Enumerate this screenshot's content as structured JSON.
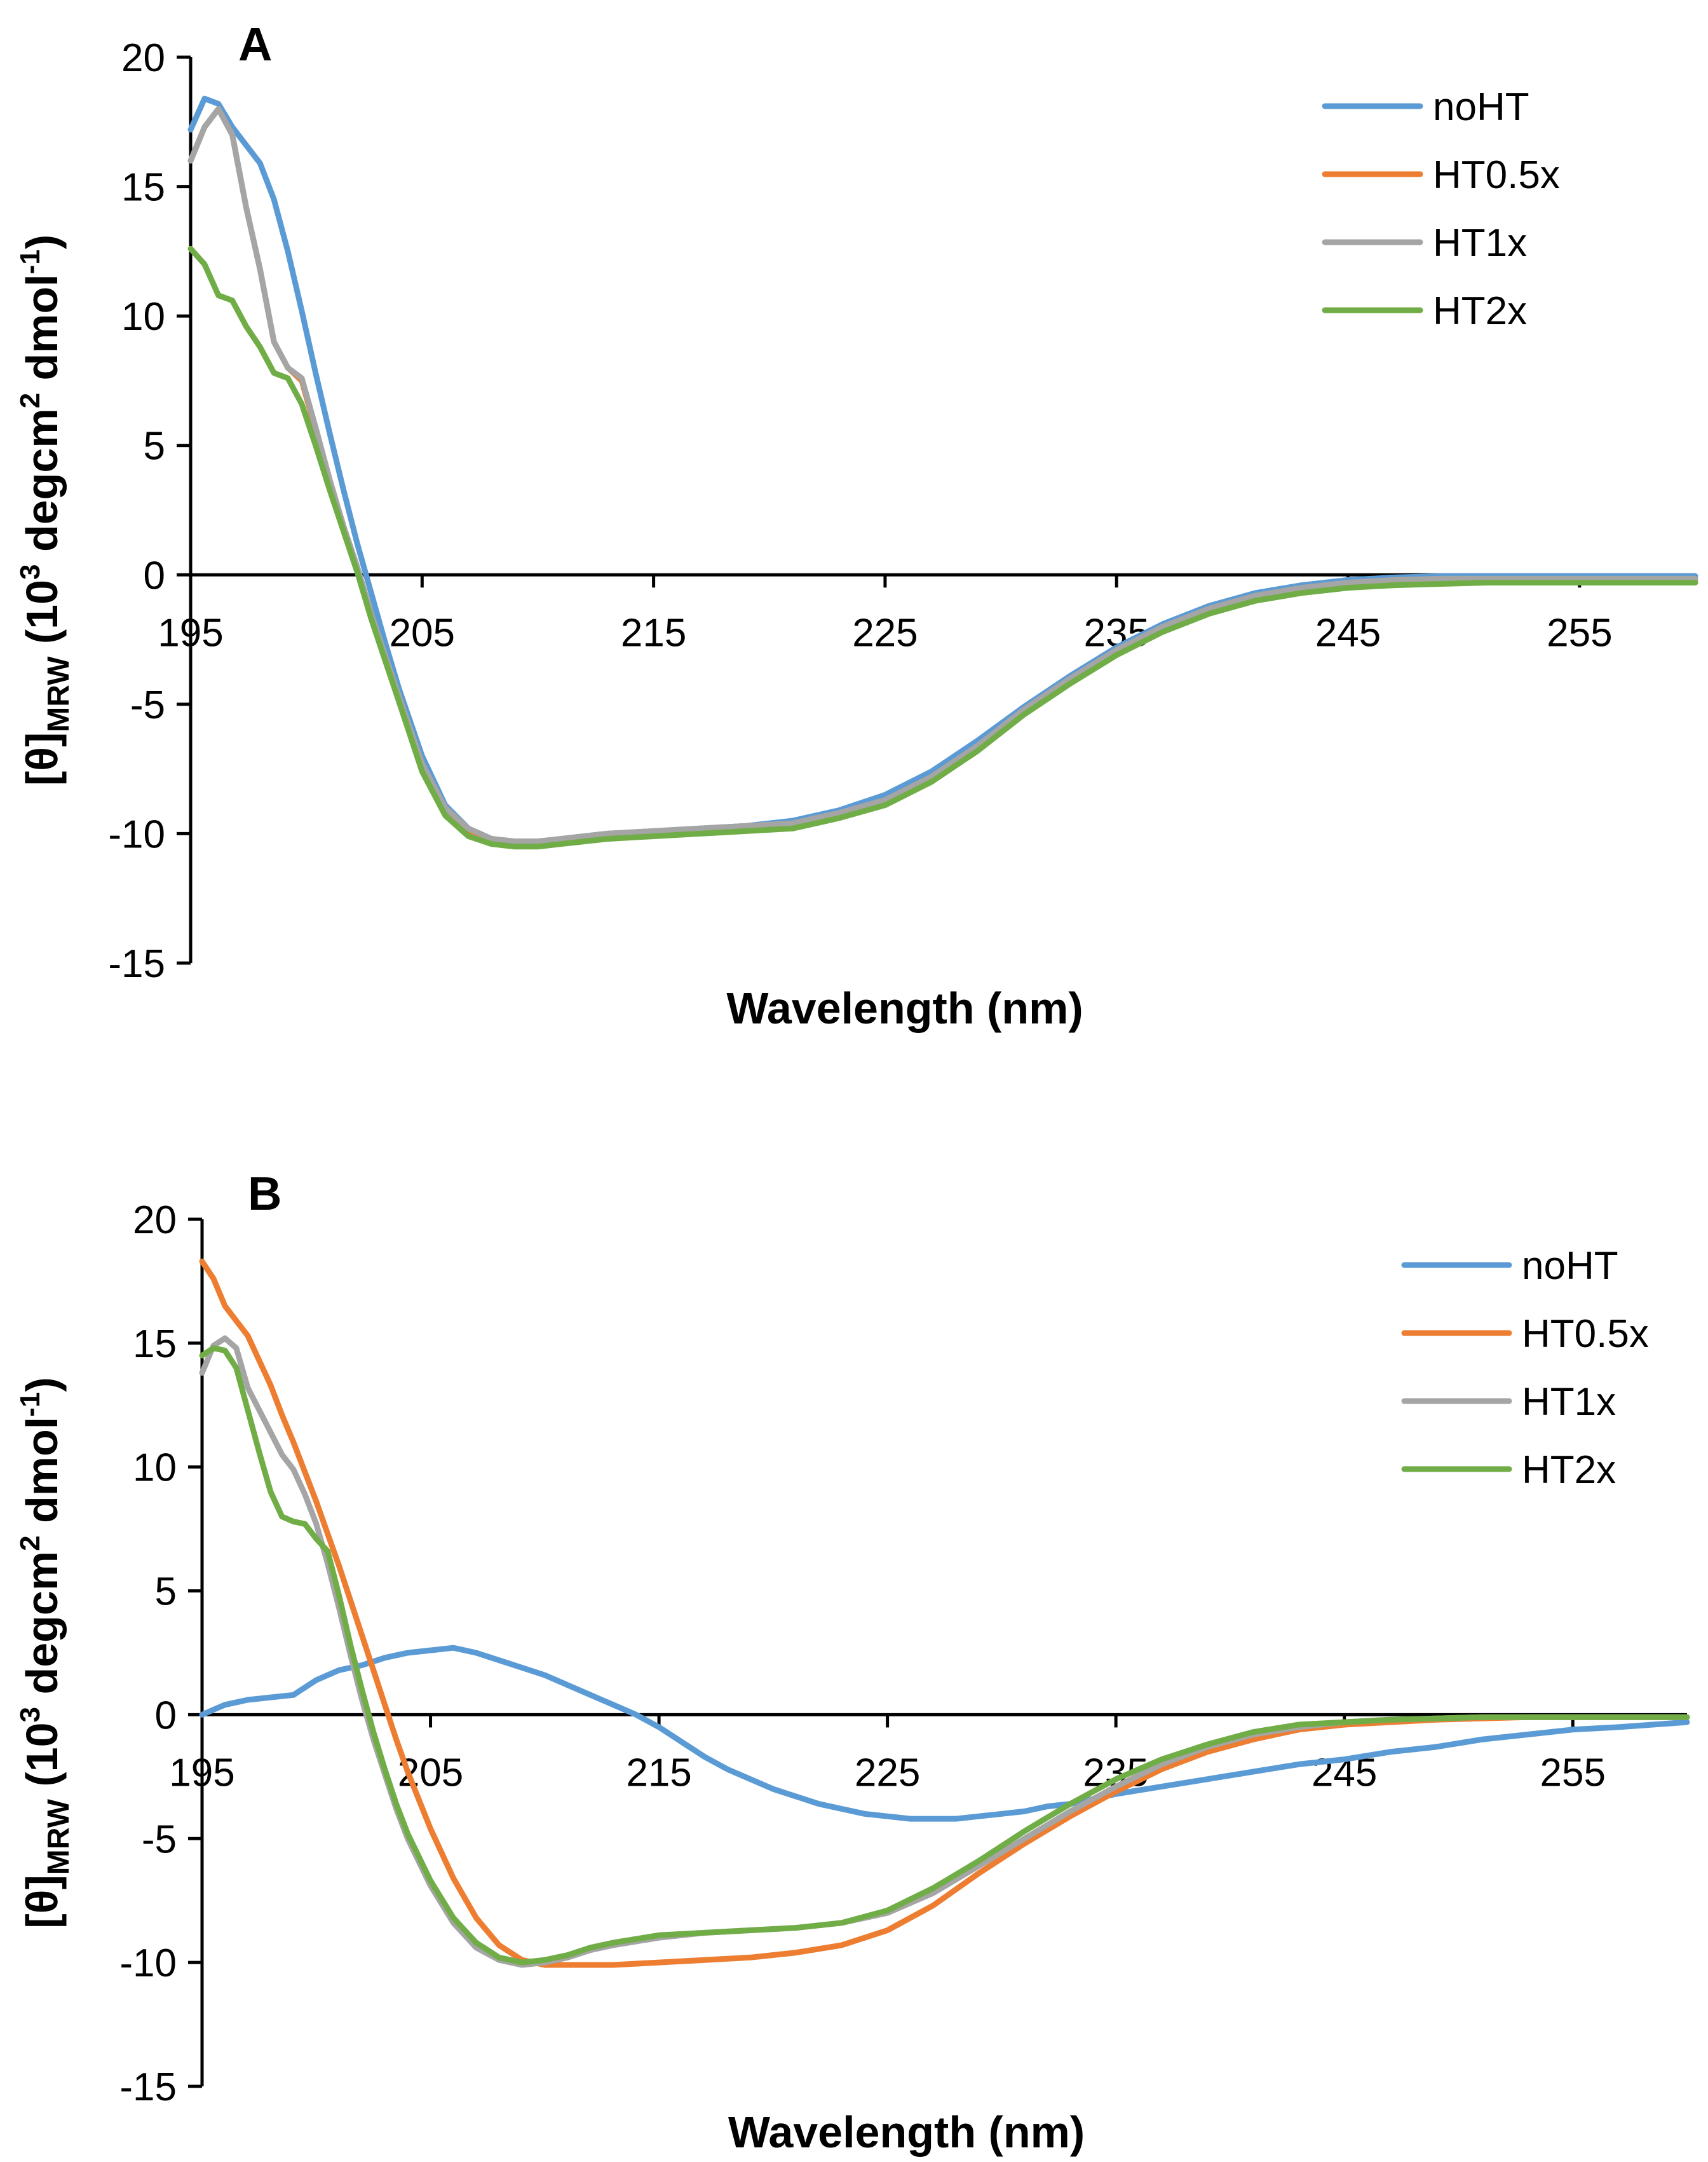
{
  "chart_data": [
    {
      "type": "line",
      "panel_label": "A",
      "xlabel": "Wavelength (nm)",
      "ylabel": "[θ]MRW (10³ degcm² dmol⁻¹)",
      "ylabel_parts": {
        "main": "[θ]",
        "sub": "MRW",
        "rest": " (10",
        "sup1": "3",
        "mid": " degcm",
        "sup2": "2",
        "mid2": " dmol",
        "sup3": "-1",
        "end": ")"
      },
      "xlim": [
        195,
        260
      ],
      "ylim": [
        -15,
        20
      ],
      "x_ticks": [
        195,
        205,
        215,
        225,
        235,
        245,
        255
      ],
      "y_ticks": [
        20,
        15,
        10,
        5,
        0,
        -5,
        -10,
        -15
      ],
      "grid": false,
      "legend_position": "top-right",
      "series": [
        {
          "name": "noHT",
          "color": "#5b9bd5",
          "x": [
            195,
            195.6,
            196.2,
            196.8,
            197.4,
            198,
            198.6,
            199.2,
            199.8,
            200.4,
            201,
            201.6,
            202.2,
            202.8,
            203.4,
            204,
            205,
            206,
            207,
            208,
            209,
            210,
            211,
            212,
            213,
            215,
            217,
            219,
            221,
            223,
            225,
            227,
            229,
            231,
            233,
            235,
            237,
            239,
            241,
            243,
            245,
            247,
            249,
            251,
            253,
            255,
            257,
            260
          ],
          "y": [
            17.2,
            18.4,
            18.2,
            17.3,
            16.6,
            15.9,
            14.5,
            12.5,
            10.2,
            7.8,
            5.5,
            3.3,
            1.2,
            -0.7,
            -2.6,
            -4.4,
            -7.0,
            -8.9,
            -9.8,
            -10.2,
            -10.3,
            -10.3,
            -10.2,
            -10.1,
            -10.0,
            -9.9,
            -9.8,
            -9.7,
            -9.5,
            -9.1,
            -8.5,
            -7.6,
            -6.4,
            -5.1,
            -3.9,
            -2.8,
            -1.9,
            -1.2,
            -0.7,
            -0.4,
            -0.2,
            -0.1,
            -0.05,
            -0.05,
            -0.05,
            -0.05,
            -0.05,
            -0.05
          ]
        },
        {
          "name": "HT0.5x",
          "color": "#ed7d31",
          "x": [
            195,
            195.6,
            196.2,
            196.8,
            197.4,
            198,
            198.6,
            199.2,
            199.8,
            200.4,
            201,
            201.6,
            202.2,
            202.8,
            203.4,
            204,
            205,
            206,
            207,
            208,
            209,
            210,
            211,
            212,
            213,
            215,
            217,
            219,
            221,
            223,
            225,
            227,
            229,
            231,
            233,
            235,
            237,
            239,
            241,
            243,
            245,
            247,
            249,
            251,
            253,
            255,
            257,
            260
          ],
          "y": [
            16.0,
            17.3,
            18.0,
            17.0,
            14.2,
            11.8,
            9.0,
            8.0,
            7.5,
            5.6,
            3.6,
            1.8,
            0.2,
            -1.6,
            -3.2,
            -4.8,
            -7.4,
            -9.1,
            -9.9,
            -10.3,
            -10.4,
            -10.4,
            -10.3,
            -10.2,
            -10.1,
            -10.0,
            -9.9,
            -9.8,
            -9.7,
            -9.3,
            -8.8,
            -7.9,
            -6.7,
            -5.3,
            -4.1,
            -3.0,
            -2.1,
            -1.4,
            -0.9,
            -0.6,
            -0.4,
            -0.3,
            -0.25,
            -0.2,
            -0.2,
            -0.2,
            -0.2,
            -0.2
          ]
        },
        {
          "name": "HT1x",
          "color": "#a5a5a5",
          "x": [
            195,
            195.6,
            196.2,
            196.8,
            197.4,
            198,
            198.6,
            199.2,
            199.8,
            200.4,
            201,
            201.6,
            202.2,
            202.8,
            203.4,
            204,
            205,
            206,
            207,
            208,
            209,
            210,
            211,
            212,
            213,
            215,
            217,
            219,
            221,
            223,
            225,
            227,
            229,
            231,
            233,
            235,
            237,
            239,
            241,
            243,
            245,
            247,
            249,
            251,
            253,
            255,
            257,
            260
          ],
          "y": [
            16.0,
            17.3,
            18.0,
            17.0,
            14.2,
            11.8,
            9.0,
            8.0,
            7.6,
            5.7,
            3.7,
            1.9,
            0.3,
            -1.5,
            -3.1,
            -4.7,
            -7.3,
            -9.0,
            -9.8,
            -10.2,
            -10.3,
            -10.3,
            -10.2,
            -10.1,
            -10.0,
            -9.9,
            -9.8,
            -9.7,
            -9.6,
            -9.2,
            -8.7,
            -7.8,
            -6.6,
            -5.2,
            -4.0,
            -2.9,
            -2.0,
            -1.3,
            -0.8,
            -0.5,
            -0.3,
            -0.2,
            -0.15,
            -0.15,
            -0.15,
            -0.15,
            -0.15,
            -0.15
          ]
        },
        {
          "name": "HT2x",
          "color": "#70ad47",
          "x": [
            195,
            195.6,
            196.2,
            196.8,
            197.4,
            198,
            198.6,
            199.2,
            199.8,
            200.4,
            201,
            201.6,
            202.2,
            202.8,
            203.4,
            204,
            205,
            206,
            207,
            208,
            209,
            210,
            211,
            212,
            213,
            215,
            217,
            219,
            221,
            223,
            225,
            227,
            229,
            231,
            233,
            235,
            237,
            239,
            241,
            243,
            245,
            247,
            249,
            251,
            253,
            255,
            257,
            260
          ],
          "y": [
            12.6,
            12.0,
            10.8,
            10.6,
            9.6,
            8.8,
            7.8,
            7.6,
            6.6,
            5.0,
            3.3,
            1.7,
            0.1,
            -1.7,
            -3.3,
            -4.9,
            -7.6,
            -9.3,
            -10.1,
            -10.4,
            -10.5,
            -10.5,
            -10.4,
            -10.3,
            -10.2,
            -10.1,
            -10.0,
            -9.9,
            -9.8,
            -9.4,
            -8.9,
            -8.0,
            -6.8,
            -5.4,
            -4.2,
            -3.1,
            -2.2,
            -1.5,
            -1.0,
            -0.7,
            -0.5,
            -0.4,
            -0.35,
            -0.3,
            -0.3,
            -0.3,
            -0.3,
            -0.3
          ]
        }
      ]
    },
    {
      "type": "line",
      "panel_label": "B",
      "xlabel": "Wavelength (nm)",
      "ylabel": "[θ]MRW (10³ degcm² dmol⁻¹)",
      "ylabel_parts": {
        "main": "[θ]",
        "sub": "MRW",
        "rest": " (10",
        "sup1": "3",
        "mid": " degcm",
        "sup2": "2",
        "mid2": " dmol",
        "sup3": "-1",
        "end": ")"
      },
      "xlim": [
        195,
        260
      ],
      "ylim": [
        -15,
        20
      ],
      "x_ticks": [
        195,
        205,
        215,
        225,
        235,
        245,
        255
      ],
      "y_ticks": [
        20,
        15,
        10,
        5,
        0,
        -5,
        -10,
        -15
      ],
      "grid": false,
      "legend_position": "top-right",
      "series": [
        {
          "name": "noHT",
          "color": "#5b9bd5",
          "x": [
            195,
            196,
            197,
            198,
            199,
            200,
            201,
            202,
            203,
            204,
            205,
            206,
            207,
            208,
            209,
            210,
            211,
            212,
            213,
            214,
            215,
            216,
            217,
            218,
            219,
            220,
            221,
            222,
            223,
            224,
            225,
            226,
            227,
            228,
            229,
            230,
            231,
            232,
            233,
            234,
            235,
            237,
            239,
            241,
            243,
            245,
            247,
            249,
            251,
            253,
            255,
            257,
            260
          ],
          "y": [
            0.0,
            0.4,
            0.6,
            0.7,
            0.8,
            1.4,
            1.8,
            2.0,
            2.3,
            2.5,
            2.6,
            2.7,
            2.5,
            2.2,
            1.9,
            1.6,
            1.2,
            0.8,
            0.4,
            0.0,
            -0.5,
            -1.1,
            -1.7,
            -2.2,
            -2.6,
            -3.0,
            -3.3,
            -3.6,
            -3.8,
            -4.0,
            -4.1,
            -4.2,
            -4.2,
            -4.2,
            -4.1,
            -4.0,
            -3.9,
            -3.7,
            -3.6,
            -3.4,
            -3.2,
            -2.9,
            -2.6,
            -2.3,
            -2.0,
            -1.8,
            -1.5,
            -1.3,
            -1.0,
            -0.8,
            -0.6,
            -0.5,
            -0.3
          ]
        },
        {
          "name": "HT0.5x",
          "color": "#ed7d31",
          "x": [
            195,
            195.5,
            196,
            196.5,
            197,
            197.5,
            198,
            198.5,
            199,
            199.5,
            200,
            200.5,
            201,
            201.5,
            202,
            202.5,
            203,
            203.5,
            204,
            205,
            206,
            207,
            208,
            209,
            210,
            211,
            212,
            213,
            215,
            217,
            219,
            221,
            223,
            225,
            227,
            229,
            231,
            233,
            235,
            237,
            239,
            241,
            243,
            245,
            247,
            249,
            251,
            253,
            255,
            257,
            260
          ],
          "y": [
            18.3,
            17.6,
            16.5,
            15.9,
            15.3,
            14.3,
            13.3,
            12.1,
            11.0,
            9.8,
            8.6,
            7.3,
            6.0,
            4.6,
            3.2,
            1.8,
            0.4,
            -1.0,
            -2.3,
            -4.6,
            -6.6,
            -8.2,
            -9.3,
            -9.9,
            -10.1,
            -10.1,
            -10.1,
            -10.1,
            -10.0,
            -9.9,
            -9.8,
            -9.6,
            -9.3,
            -8.7,
            -7.7,
            -6.4,
            -5.2,
            -4.1,
            -3.1,
            -2.2,
            -1.5,
            -1.0,
            -0.6,
            -0.4,
            -0.3,
            -0.2,
            -0.15,
            -0.1,
            -0.1,
            -0.1,
            -0.1
          ]
        },
        {
          "name": "HT1x",
          "color": "#a5a5a5",
          "x": [
            195,
            195.5,
            196,
            196.5,
            197,
            197.5,
            198,
            198.5,
            199,
            199.5,
            200,
            200.5,
            201,
            201.5,
            202,
            202.5,
            203,
            203.5,
            204,
            205,
            206,
            207,
            208,
            209,
            210,
            211,
            212,
            213,
            215,
            217,
            219,
            221,
            223,
            225,
            227,
            229,
            231,
            233,
            235,
            237,
            239,
            241,
            243,
            245,
            247,
            249,
            251,
            253,
            255,
            257,
            260
          ],
          "y": [
            13.8,
            14.9,
            15.2,
            14.8,
            13.2,
            12.3,
            11.4,
            10.5,
            9.9,
            8.9,
            7.7,
            6.1,
            4.3,
            2.4,
            0.6,
            -1.0,
            -2.4,
            -3.8,
            -5.0,
            -6.9,
            -8.4,
            -9.4,
            -9.9,
            -10.1,
            -10.0,
            -9.8,
            -9.5,
            -9.3,
            -9.0,
            -8.8,
            -8.7,
            -8.6,
            -8.4,
            -8.0,
            -7.2,
            -6.1,
            -5.0,
            -3.9,
            -2.9,
            -2.0,
            -1.3,
            -0.8,
            -0.5,
            -0.3,
            -0.2,
            -0.15,
            -0.1,
            -0.1,
            -0.1,
            -0.1,
            -0.1
          ]
        },
        {
          "name": "HT2x",
          "color": "#70ad47",
          "x": [
            195,
            195.5,
            196,
            196.5,
            197,
            197.5,
            198,
            198.5,
            199,
            199.5,
            200,
            200.5,
            201,
            201.5,
            202,
            202.5,
            203,
            203.5,
            204,
            205,
            206,
            207,
            208,
            209,
            210,
            211,
            212,
            213,
            215,
            217,
            219,
            221,
            223,
            225,
            227,
            229,
            231,
            233,
            235,
            237,
            239,
            241,
            243,
            245,
            247,
            249,
            251,
            253,
            255,
            257,
            260
          ],
          "y": [
            14.5,
            14.8,
            14.7,
            14.0,
            12.3,
            10.6,
            9.0,
            8.0,
            7.8,
            7.7,
            7.1,
            6.6,
            4.8,
            2.8,
            1.0,
            -0.7,
            -2.2,
            -3.6,
            -4.8,
            -6.7,
            -8.2,
            -9.2,
            -9.8,
            -10.0,
            -9.9,
            -9.7,
            -9.4,
            -9.2,
            -8.9,
            -8.8,
            -8.7,
            -8.6,
            -8.4,
            -7.9,
            -7.0,
            -5.9,
            -4.7,
            -3.6,
            -2.6,
            -1.8,
            -1.2,
            -0.7,
            -0.4,
            -0.3,
            -0.2,
            -0.15,
            -0.1,
            -0.1,
            -0.1,
            -0.1,
            -0.1
          ]
        }
      ]
    }
  ]
}
